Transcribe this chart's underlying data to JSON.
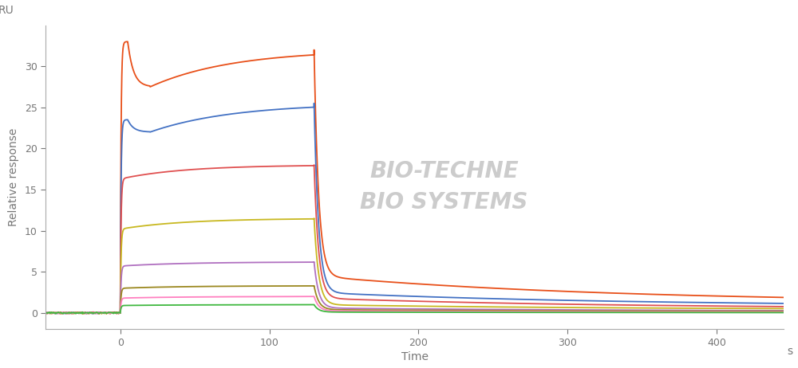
{
  "xlabel": "Time",
  "xlabel_s": "s",
  "ylabel": "Relative response",
  "ylabel_top": "RU",
  "xlim": [
    -50,
    445
  ],
  "ylim": [
    -2,
    35
  ],
  "xticks": [
    0,
    100,
    200,
    300,
    400
  ],
  "yticks": [
    0,
    5,
    10,
    15,
    20,
    25,
    30
  ],
  "background_color": "#ffffff",
  "axes_color": "#aaaaaa",
  "label_color": "#777777",
  "t_baseline_start": -50,
  "t_inject_start": 0,
  "t_inject_end": 130,
  "t_end": 445,
  "linewidth": 1.3,
  "series": [
    {
      "color": "#e8501a",
      "assoc_init": 33.0,
      "dip_val": 27.5,
      "plateau": 32.0,
      "dissoc_init": 4.5,
      "dissoc_end": 1.2,
      "has_bulk": true
    },
    {
      "color": "#4472c4",
      "assoc_init": 23.5,
      "dip_val": 22.0,
      "plateau": 25.5,
      "dissoc_init": 2.5,
      "dissoc_end": 0.8,
      "has_bulk": true
    },
    {
      "color": "#e05050",
      "assoc_init": 16.3,
      "dip_val": null,
      "plateau": 18.0,
      "dissoc_init": 1.8,
      "dissoc_end": 0.5,
      "has_bulk": false
    },
    {
      "color": "#c8b820",
      "assoc_init": 10.2,
      "dip_val": null,
      "plateau": 11.5,
      "dissoc_init": 1.0,
      "dissoc_end": 0.4,
      "has_bulk": false
    },
    {
      "color": "#b070c0",
      "assoc_init": 5.7,
      "dip_val": null,
      "plateau": 6.2,
      "dissoc_init": 0.6,
      "dissoc_end": 0.2,
      "has_bulk": false
    },
    {
      "color": "#9b8820",
      "assoc_init": 3.0,
      "dip_val": null,
      "plateau": 3.3,
      "dissoc_init": 0.4,
      "dissoc_end": 0.15,
      "has_bulk": false
    },
    {
      "color": "#ff80c0",
      "assoc_init": 1.8,
      "dip_val": null,
      "plateau": 2.0,
      "dissoc_init": 0.25,
      "dissoc_end": 0.08,
      "has_bulk": false
    },
    {
      "color": "#40b840",
      "assoc_init": 0.9,
      "dip_val": null,
      "plateau": 1.0,
      "dissoc_init": 0.1,
      "dissoc_end": 0.02,
      "has_bulk": false
    }
  ]
}
